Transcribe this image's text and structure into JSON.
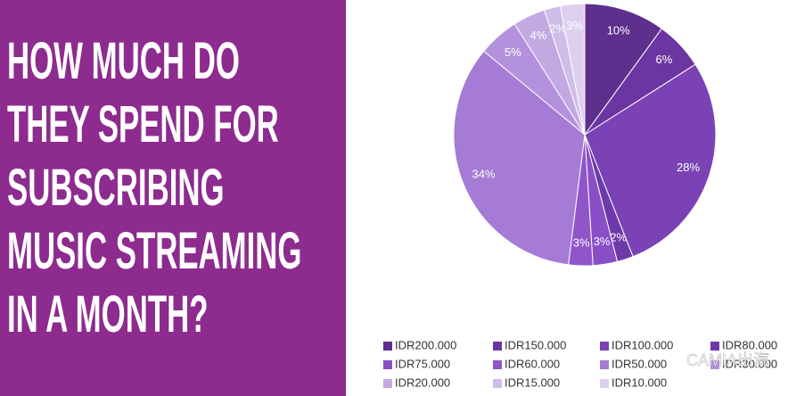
{
  "chart_data": {
    "type": "pie",
    "title": [
      "HOW MUCH DO",
      "THEY SPEND FOR",
      "SUBSCRIBING",
      "MUSIC STREAMING",
      "IN A MONTH?"
    ],
    "categories": [
      "IDR200.000",
      "IDR150.000",
      "IDR100.000",
      "IDR80.000",
      "IDR75.000",
      "IDR60.000",
      "IDR50.000",
      "IDR30.000",
      "IDR20.000",
      "IDR15.000",
      "IDR10.000"
    ],
    "values": [
      10,
      6,
      28,
      2,
      3,
      3,
      34,
      5,
      4,
      2,
      3
    ],
    "value_labels": [
      "10%",
      "6%",
      "28%",
      "2%",
      "3%",
      "3%",
      "34%",
      "5%",
      "4%",
      "2%",
      "3%"
    ],
    "colors": [
      "#5e2f8c",
      "#6b36a1",
      "#7a42b4",
      "#6e3aa9",
      "#8a4fc6",
      "#9055c9",
      "#a57bd5",
      "#b491dc",
      "#c2a9e2",
      "#cfbce8",
      "#ddd0ef"
    ],
    "legend": "bottom",
    "watermark": "CAMIA出海"
  }
}
